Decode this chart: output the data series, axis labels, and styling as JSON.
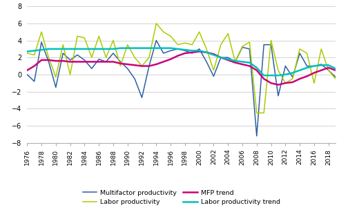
{
  "years": [
    1976,
    1977,
    1978,
    1979,
    1980,
    1981,
    1982,
    1983,
    1984,
    1985,
    1986,
    1987,
    1988,
    1989,
    1990,
    1991,
    1992,
    1993,
    1994,
    1995,
    1996,
    1997,
    1998,
    1999,
    2000,
    2001,
    2002,
    2003,
    2004,
    2005,
    2006,
    2007,
    2008,
    2009,
    2010,
    2011,
    2012,
    2013,
    2014,
    2015,
    2016,
    2017,
    2018,
    2019
  ],
  "multifactor": [
    0.0,
    -0.8,
    3.8,
    1.5,
    -1.5,
    2.5,
    1.7,
    2.3,
    1.7,
    0.7,
    1.8,
    1.5,
    2.5,
    1.5,
    0.7,
    -0.5,
    -2.7,
    1.0,
    4.0,
    2.5,
    2.8,
    3.0,
    2.8,
    2.5,
    3.0,
    1.5,
    -0.2,
    2.0,
    2.0,
    1.5,
    3.2,
    3.0,
    -7.2,
    3.5,
    3.5,
    -2.5,
    1.0,
    -0.3,
    2.5,
    1.0,
    1.0,
    1.2,
    0.5,
    -0.3
  ],
  "labor": [
    2.5,
    2.3,
    5.0,
    2.0,
    -0.3,
    3.5,
    0.0,
    4.5,
    4.3,
    2.0,
    4.5,
    2.0,
    4.0,
    1.0,
    3.5,
    2.0,
    1.0,
    2.0,
    6.0,
    5.0,
    4.5,
    3.5,
    3.7,
    3.5,
    5.0,
    3.0,
    0.5,
    3.5,
    4.8,
    1.5,
    3.3,
    3.8,
    -4.5,
    -4.5,
    4.0,
    0.5,
    -1.0,
    -0.5,
    3.0,
    2.5,
    -1.0,
    3.0,
    0.5,
    -0.5
  ],
  "mfp_trend": [
    0.5,
    1.0,
    1.7,
    1.7,
    1.6,
    1.6,
    1.5,
    1.5,
    1.5,
    1.5,
    1.5,
    1.5,
    1.5,
    1.3,
    1.2,
    1.1,
    1.0,
    1.0,
    1.2,
    1.5,
    1.8,
    2.2,
    2.5,
    2.6,
    2.7,
    2.6,
    2.4,
    2.0,
    1.7,
    1.4,
    1.2,
    1.0,
    0.5,
    -0.5,
    -1.0,
    -1.2,
    -1.0,
    -0.9,
    -0.5,
    -0.2,
    0.2,
    0.5,
    0.8,
    0.5
  ],
  "labor_trend": [
    2.7,
    2.8,
    2.9,
    3.0,
    3.0,
    3.0,
    3.0,
    3.0,
    3.0,
    3.0,
    3.0,
    3.0,
    3.0,
    3.1,
    3.1,
    3.1,
    3.1,
    3.1,
    3.1,
    3.1,
    3.1,
    3.0,
    2.9,
    2.8,
    2.8,
    2.6,
    2.3,
    2.0,
    1.8,
    1.6,
    1.5,
    1.4,
    0.8,
    -0.1,
    -0.1,
    -0.1,
    0.0,
    0.2,
    0.5,
    0.8,
    1.0,
    1.1,
    1.1,
    0.7
  ],
  "multifactor_color": "#2e5fa3",
  "labor_color": "#aacc00",
  "mfp_trend_color": "#cc007a",
  "labor_trend_color": "#00c0c0",
  "ylim": [
    -8,
    8
  ],
  "yticks": [
    -8,
    -6,
    -4,
    -2,
    0,
    2,
    4,
    6,
    8
  ],
  "background_color": "#ffffff",
  "grid_color": "#cccccc",
  "legend_labels": [
    "Multifactor productivity",
    "Labor productivity",
    "MFP trend",
    "Labor productivity trend"
  ]
}
